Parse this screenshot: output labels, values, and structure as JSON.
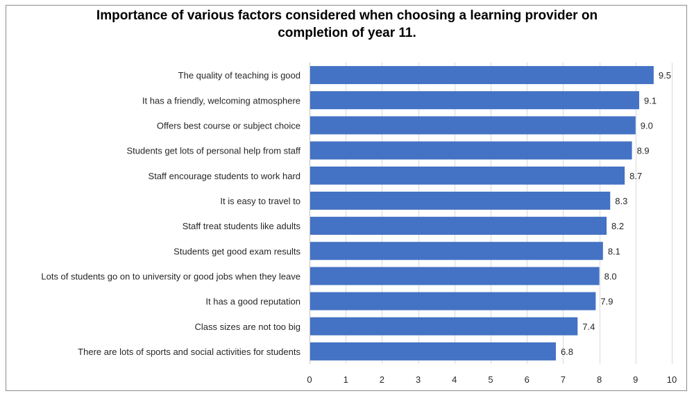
{
  "chart_data": {
    "type": "bar",
    "orientation": "horizontal",
    "title_line1": "Importance of various factors considered when choosing a learning provider on",
    "title_line2": "completion of year 11.",
    "categories": [
      "The quality of teaching is good",
      "It has a friendly, welcoming atmosphere",
      "Offers best course or subject choice",
      "Students get lots of personal help from staff",
      "Staff encourage students to work hard",
      "It is easy to travel to",
      "Staff treat students like adults",
      "Students get good exam results",
      "Lots of students go on to university or good jobs when they leave",
      "It has a good reputation",
      "Class sizes are not too big",
      "There are lots of sports and social activities for students"
    ],
    "values": [
      9.5,
      9.1,
      9.0,
      8.9,
      8.7,
      8.3,
      8.2,
      8.1,
      8.0,
      7.9,
      7.4,
      6.8
    ],
    "value_labels": [
      "9.5",
      "9.1",
      "9.0",
      "8.9",
      "8.7",
      "8.3",
      "8.2",
      "8.1",
      "8.0",
      "7.9",
      "7.4",
      "6.8"
    ],
    "xlim": [
      0,
      10
    ],
    "xticks": [
      0,
      1,
      2,
      3,
      4,
      5,
      6,
      7,
      8,
      9,
      10
    ],
    "grid": "vertical",
    "bar_color": "#4472c4",
    "grid_color": "#d9d9d9"
  }
}
